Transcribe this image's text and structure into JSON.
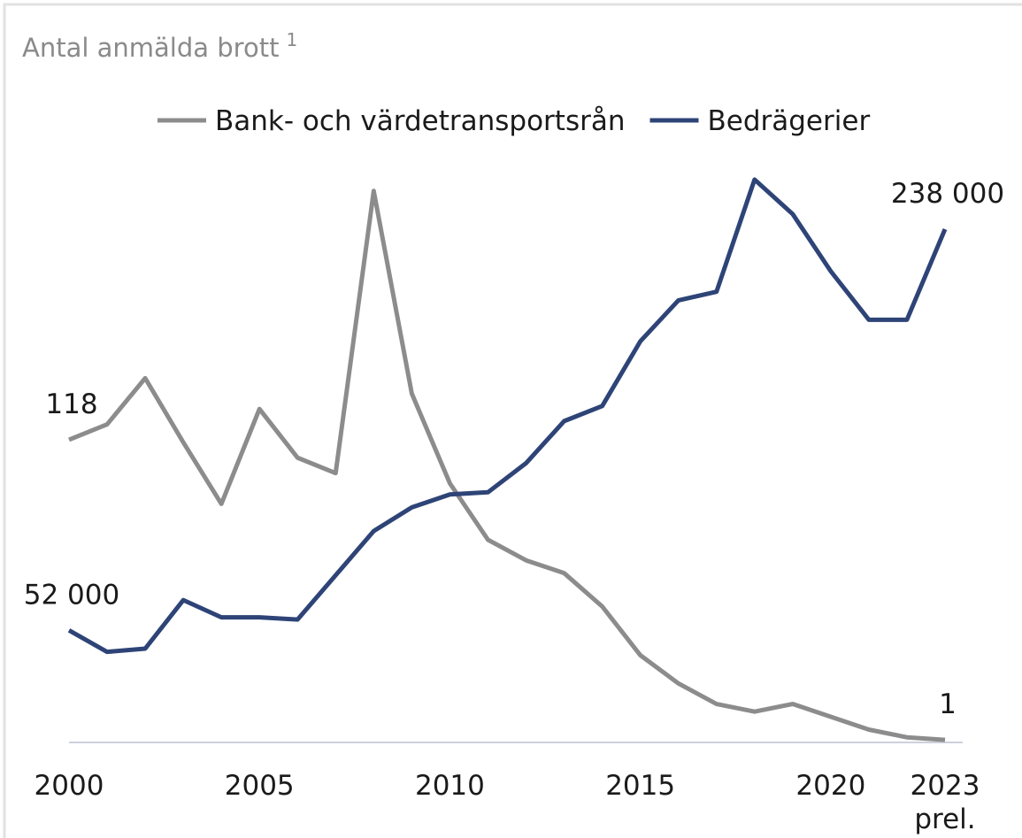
{
  "chart_data": {
    "type": "line",
    "title": "Antal anmälda brott",
    "title_note": "1",
    "x": [
      2000,
      2001,
      2002,
      2003,
      2004,
      2005,
      2006,
      2007,
      2008,
      2009,
      2010,
      2011,
      2012,
      2013,
      2014,
      2015,
      2016,
      2017,
      2018,
      2019,
      2020,
      2021,
      2022,
      2023
    ],
    "xlim": [
      2000,
      2023
    ],
    "xticks": [
      2000,
      2005,
      2010,
      2015,
      2020,
      {
        "value": 2023,
        "label": "2023 prel."
      }
    ],
    "ylim": [
      0,
      227
    ],
    "y2lim": [
      0,
      270000
    ],
    "legend": "top",
    "series": [
      {
        "name": "Bank- och värdetransportsrån",
        "color": "#8c8c8c",
        "values": [
          118,
          124,
          142,
          117,
          93,
          130,
          111,
          105,
          215,
          136,
          101,
          79,
          71,
          66,
          53,
          34,
          23,
          15,
          12,
          15,
          10,
          5,
          2,
          1
        ],
        "value_labels": [
          "118",
          null,
          null,
          null,
          null,
          null,
          null,
          null,
          null,
          null,
          null,
          null,
          null,
          null,
          null,
          null,
          null,
          null,
          null,
          null,
          null,
          null,
          null,
          "1"
        ]
      },
      {
        "name": "Bedrägerier",
        "color": "#2e4477",
        "axis": "y2",
        "values": [
          52000,
          42000,
          43500,
          66000,
          58000,
          58000,
          57000,
          77500,
          98000,
          109000,
          115000,
          116000,
          129500,
          149000,
          156000,
          186000,
          205000,
          209000,
          261000,
          245000,
          218500,
          196000,
          196000,
          238000
        ],
        "value_labels": [
          "52 000",
          null,
          null,
          null,
          null,
          null,
          null,
          null,
          null,
          null,
          null,
          null,
          null,
          null,
          null,
          null,
          null,
          null,
          null,
          null,
          null,
          null,
          null,
          "238 000"
        ]
      }
    ]
  }
}
